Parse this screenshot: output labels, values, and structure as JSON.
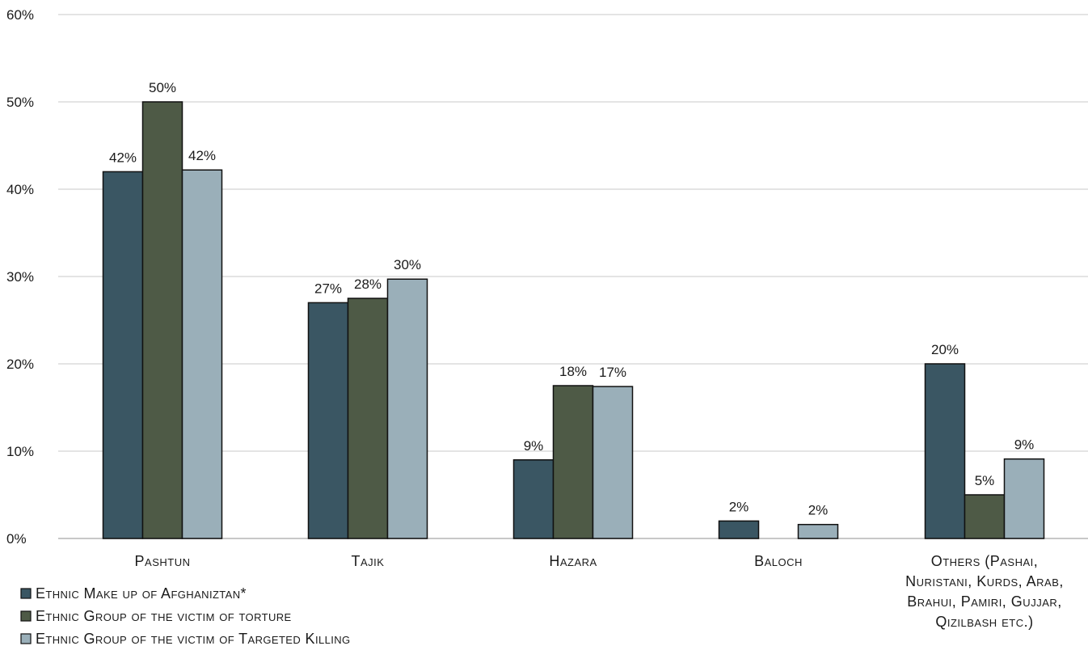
{
  "chart_data": {
    "type": "bar",
    "categories": [
      [
        "Pashtun"
      ],
      [
        "Tajik"
      ],
      [
        "Hazara"
      ],
      [
        "Baloch"
      ],
      [
        "Others (Pashai,",
        "Nuristani, Kurds, Arab,",
        "Brahui, Pamiri, Gujjar,",
        "Qizilbash etc.)"
      ]
    ],
    "series": [
      {
        "name": "Ethnic Make up of Afghaniztan*",
        "color": "#3a5663",
        "values": [
          42,
          27,
          9,
          2,
          20
        ],
        "labels": [
          "42%",
          "27%",
          "9%",
          "2%",
          "20%"
        ]
      },
      {
        "name": "Ethnic Group of the victim of torture",
        "color": "#4e5a46",
        "values": [
          50,
          27.5,
          17.5,
          null,
          5
        ],
        "labels": [
          "50%",
          "28%",
          "18%",
          null,
          "5%"
        ]
      },
      {
        "name": "Ethnic Group of the victim of Targeted Killing",
        "color": "#9aafb9",
        "values": [
          42.2,
          29.7,
          17.4,
          1.6,
          9.1
        ],
        "labels": [
          "42%",
          "30%",
          "17%",
          "2%",
          "9%"
        ]
      }
    ],
    "y_ticks": [
      "0%",
      "10%",
      "20%",
      "30%",
      "40%",
      "50%",
      "60%"
    ],
    "ylim": [
      0,
      60
    ],
    "grid": true,
    "legend_position": "bottom-left",
    "title": "",
    "xlabel": "",
    "ylabel": ""
  }
}
